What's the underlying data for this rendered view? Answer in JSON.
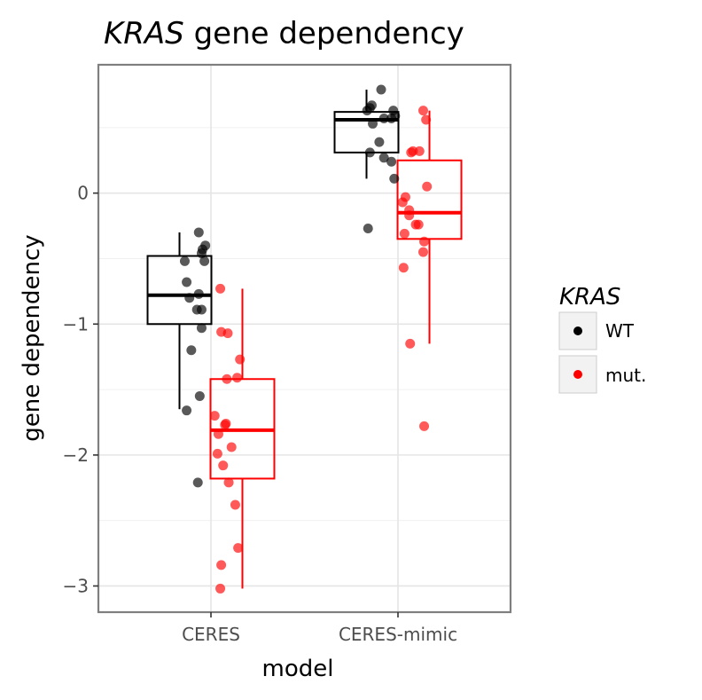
{
  "chart_data": {
    "type": "box",
    "title": {
      "italic_part": "KRAS",
      "rest": " gene dependency"
    },
    "xlabel": "model",
    "ylabel": "gene dependency",
    "categories": [
      "CERES",
      "CERES-mimic"
    ],
    "ylim": [
      -3.2,
      0.98
    ],
    "yticks": [
      {
        "value": 0,
        "label": "0"
      },
      {
        "value": -1,
        "label": "−1"
      },
      {
        "value": -2,
        "label": "−2"
      },
      {
        "value": -3,
        "label": "−3"
      }
    ],
    "grid": true,
    "legend": {
      "title": "KRAS",
      "placement": "right",
      "entries": [
        {
          "label": "WT",
          "color": "#000000"
        },
        {
          "label": "mut.",
          "color": "#ff0000"
        }
      ]
    },
    "series": [
      {
        "name": "WT",
        "color": "#000000",
        "boxes": [
          {
            "category": "CERES",
            "min": -1.65,
            "q1": -1.0,
            "median": -0.78,
            "q3": -0.48,
            "max": -0.3
          },
          {
            "category": "CERES-mimic",
            "min": 0.11,
            "q1": 0.31,
            "median": 0.56,
            "q3": 0.62,
            "max": 0.79
          }
        ],
        "points": [
          {
            "category": "CERES",
            "offset": -0.28,
            "y": -0.52
          },
          {
            "category": "CERES",
            "offset": -0.26,
            "y": -0.68
          },
          {
            "category": "CERES",
            "offset": -0.23,
            "y": -0.8
          },
          {
            "category": "CERES",
            "offset": -0.21,
            "y": -1.2
          },
          {
            "category": "CERES",
            "offset": -0.26,
            "y": -1.66
          },
          {
            "category": "CERES",
            "offset": -0.13,
            "y": -0.3
          },
          {
            "category": "CERES",
            "offset": -0.09,
            "y": -0.43
          },
          {
            "category": "CERES",
            "offset": -0.06,
            "y": -0.4
          },
          {
            "category": "CERES",
            "offset": -0.1,
            "y": -0.46
          },
          {
            "category": "CERES",
            "offset": -0.07,
            "y": -0.52
          },
          {
            "category": "CERES",
            "offset": -0.13,
            "y": -0.77
          },
          {
            "category": "CERES",
            "offset": -0.15,
            "y": -0.89
          },
          {
            "category": "CERES",
            "offset": -0.1,
            "y": -0.89
          },
          {
            "category": "CERES",
            "offset": -0.1,
            "y": -1.03
          },
          {
            "category": "CERES",
            "offset": -0.12,
            "y": -1.55
          },
          {
            "category": "CERES",
            "offset": -0.14,
            "y": -2.21
          },
          {
            "category": "CERES-mimic",
            "offset": -0.33,
            "y": 0.63
          },
          {
            "category": "CERES-mimic",
            "offset": -0.3,
            "y": 0.65
          },
          {
            "category": "CERES-mimic",
            "offset": -0.28,
            "y": 0.67
          },
          {
            "category": "CERES-mimic",
            "offset": -0.27,
            "y": 0.53
          },
          {
            "category": "CERES-mimic",
            "offset": -0.18,
            "y": 0.79
          },
          {
            "category": "CERES-mimic",
            "offset": -0.15,
            "y": 0.57
          },
          {
            "category": "CERES-mimic",
            "offset": -0.2,
            "y": 0.39
          },
          {
            "category": "CERES-mimic",
            "offset": -0.3,
            "y": 0.31
          },
          {
            "category": "CERES-mimic",
            "offset": -0.15,
            "y": 0.27
          },
          {
            "category": "CERES-mimic",
            "offset": -0.07,
            "y": 0.57
          },
          {
            "category": "CERES-mimic",
            "offset": -0.03,
            "y": 0.59
          },
          {
            "category": "CERES-mimic",
            "offset": -0.05,
            "y": 0.63
          },
          {
            "category": "CERES-mimic",
            "offset": -0.07,
            "y": 0.24
          },
          {
            "category": "CERES-mimic",
            "offset": -0.04,
            "y": 0.11
          },
          {
            "category": "CERES-mimic",
            "offset": -0.32,
            "y": -0.27
          }
        ]
      },
      {
        "name": "mut.",
        "color": "#ff0000",
        "boxes": [
          {
            "category": "CERES",
            "min": -3.02,
            "q1": -2.18,
            "median": -1.81,
            "q3": -1.42,
            "max": -0.73
          },
          {
            "category": "CERES-mimic",
            "min": -1.15,
            "q1": -0.35,
            "median": -0.15,
            "q3": 0.25,
            "max": 0.63
          }
        ],
        "points": [
          {
            "category": "CERES",
            "offset": 0.1,
            "y": -0.73
          },
          {
            "category": "CERES",
            "offset": 0.11,
            "y": -1.06
          },
          {
            "category": "CERES",
            "offset": 0.18,
            "y": -1.07
          },
          {
            "category": "CERES",
            "offset": 0.31,
            "y": -1.27
          },
          {
            "category": "CERES",
            "offset": 0.28,
            "y": -1.41
          },
          {
            "category": "CERES",
            "offset": 0.17,
            "y": -1.42
          },
          {
            "category": "CERES",
            "offset": 0.04,
            "y": -1.7
          },
          {
            "category": "CERES",
            "offset": 0.15,
            "y": -1.77
          },
          {
            "category": "CERES",
            "offset": 0.16,
            "y": -1.76
          },
          {
            "category": "CERES",
            "offset": 0.08,
            "y": -1.84
          },
          {
            "category": "CERES",
            "offset": 0.22,
            "y": -1.94
          },
          {
            "category": "CERES",
            "offset": 0.07,
            "y": -1.99
          },
          {
            "category": "CERES",
            "offset": 0.13,
            "y": -2.08
          },
          {
            "category": "CERES",
            "offset": 0.19,
            "y": -2.21
          },
          {
            "category": "CERES",
            "offset": 0.26,
            "y": -2.38
          },
          {
            "category": "CERES",
            "offset": 0.29,
            "y": -2.71
          },
          {
            "category": "CERES",
            "offset": 0.11,
            "y": -2.84
          },
          {
            "category": "CERES",
            "offset": 0.1,
            "y": -3.02
          },
          {
            "category": "CERES-mimic",
            "offset": 0.27,
            "y": 0.63
          },
          {
            "category": "CERES-mimic",
            "offset": 0.3,
            "y": 0.56
          },
          {
            "category": "CERES-mimic",
            "offset": 0.14,
            "y": 0.31
          },
          {
            "category": "CERES-mimic",
            "offset": 0.16,
            "y": 0.32
          },
          {
            "category": "CERES-mimic",
            "offset": 0.23,
            "y": 0.32
          },
          {
            "category": "CERES-mimic",
            "offset": 0.31,
            "y": 0.05
          },
          {
            "category": "CERES-mimic",
            "offset": 0.08,
            "y": -0.03
          },
          {
            "category": "CERES-mimic",
            "offset": 0.05,
            "y": -0.07
          },
          {
            "category": "CERES-mimic",
            "offset": 0.12,
            "y": -0.13
          },
          {
            "category": "CERES-mimic",
            "offset": 0.12,
            "y": -0.17
          },
          {
            "category": "CERES-mimic",
            "offset": 0.19,
            "y": -0.24
          },
          {
            "category": "CERES-mimic",
            "offset": 0.22,
            "y": -0.24
          },
          {
            "category": "CERES-mimic",
            "offset": 0.07,
            "y": -0.31
          },
          {
            "category": "CERES-mimic",
            "offset": 0.28,
            "y": -0.37
          },
          {
            "category": "CERES-mimic",
            "offset": 0.27,
            "y": -0.45
          },
          {
            "category": "CERES-mimic",
            "offset": 0.06,
            "y": -0.57
          },
          {
            "category": "CERES-mimic",
            "offset": 0.13,
            "y": -1.15
          },
          {
            "category": "CERES-mimic",
            "offset": 0.28,
            "y": -1.78
          }
        ]
      }
    ]
  }
}
